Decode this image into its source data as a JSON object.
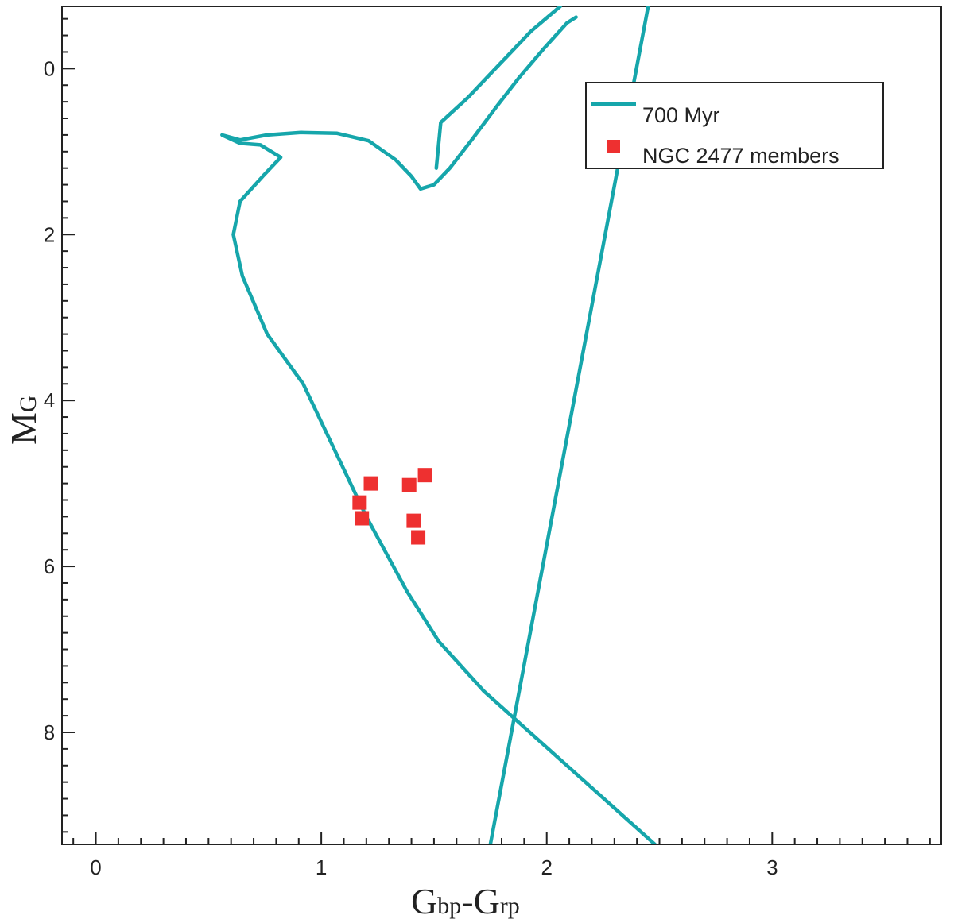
{
  "chart_data": {
    "type": "scatter",
    "title": "",
    "xlabel": {
      "main1": "G",
      "sub1": "bp",
      "sep": "-",
      "main2": "G",
      "sub2": "rp"
    },
    "ylabel": {
      "main": "M",
      "sub": "G"
    },
    "xlim": [
      -0.15,
      3.75
    ],
    "ylim": [
      9.35,
      -0.75
    ],
    "y_inverted": true,
    "x_ticks": [
      "0",
      "1",
      "2",
      "3"
    ],
    "y_ticks": [
      "0",
      "2",
      "4",
      "6",
      "8"
    ],
    "grid": false,
    "legend_position": "top-right",
    "series": [
      {
        "name": "700 Myr",
        "kind": "line",
        "color": "#16a6ab",
        "segments": [
          [
            [
              1.75,
              9.35
            ],
            [
              2.45,
              -0.75
            ]
          ],
          [
            [
              2.48,
              9.35
            ],
            [
              1.72,
              7.5
            ],
            [
              1.52,
              6.9
            ],
            [
              1.38,
              6.3
            ],
            [
              1.2,
              5.4
            ],
            [
              0.92,
              3.8
            ],
            [
              0.76,
              3.2
            ],
            [
              0.65,
              2.5
            ],
            [
              0.61,
              2.0
            ],
            [
              0.64,
              1.6
            ],
            [
              0.74,
              1.3
            ],
            [
              0.82,
              1.07
            ],
            [
              0.73,
              0.92
            ],
            [
              0.64,
              0.9
            ],
            [
              0.56,
              0.8
            ],
            [
              0.64,
              0.86
            ],
            [
              0.76,
              0.8
            ],
            [
              0.91,
              0.77
            ],
            [
              1.07,
              0.78
            ],
            [
              1.21,
              0.87
            ],
            [
              1.33,
              1.1
            ],
            [
              1.4,
              1.3
            ],
            [
              1.44,
              1.45
            ],
            [
              1.5,
              1.4
            ],
            [
              1.57,
              1.2
            ],
            [
              1.67,
              0.85
            ],
            [
              1.78,
              0.45
            ],
            [
              1.88,
              0.1
            ],
            [
              1.99,
              -0.25
            ],
            [
              2.09,
              -0.55
            ],
            [
              2.13,
              -0.62
            ]
          ],
          [
            [
              1.51,
              1.2
            ],
            [
              1.53,
              0.65
            ],
            [
              1.65,
              0.35
            ],
            [
              1.79,
              -0.05
            ],
            [
              1.93,
              -0.45
            ],
            [
              2.06,
              -0.75
            ]
          ]
        ]
      },
      {
        "name": "NGC 2477 members",
        "kind": "scatter",
        "color": "#ee3030",
        "points": [
          {
            "x": 1.22,
            "y": 5.0
          },
          {
            "x": 1.46,
            "y": 4.9
          },
          {
            "x": 1.39,
            "y": 5.02
          },
          {
            "x": 1.17,
            "y": 5.23
          },
          {
            "x": 1.18,
            "y": 5.42
          },
          {
            "x": 1.41,
            "y": 5.45
          },
          {
            "x": 1.43,
            "y": 5.65
          }
        ]
      }
    ]
  }
}
